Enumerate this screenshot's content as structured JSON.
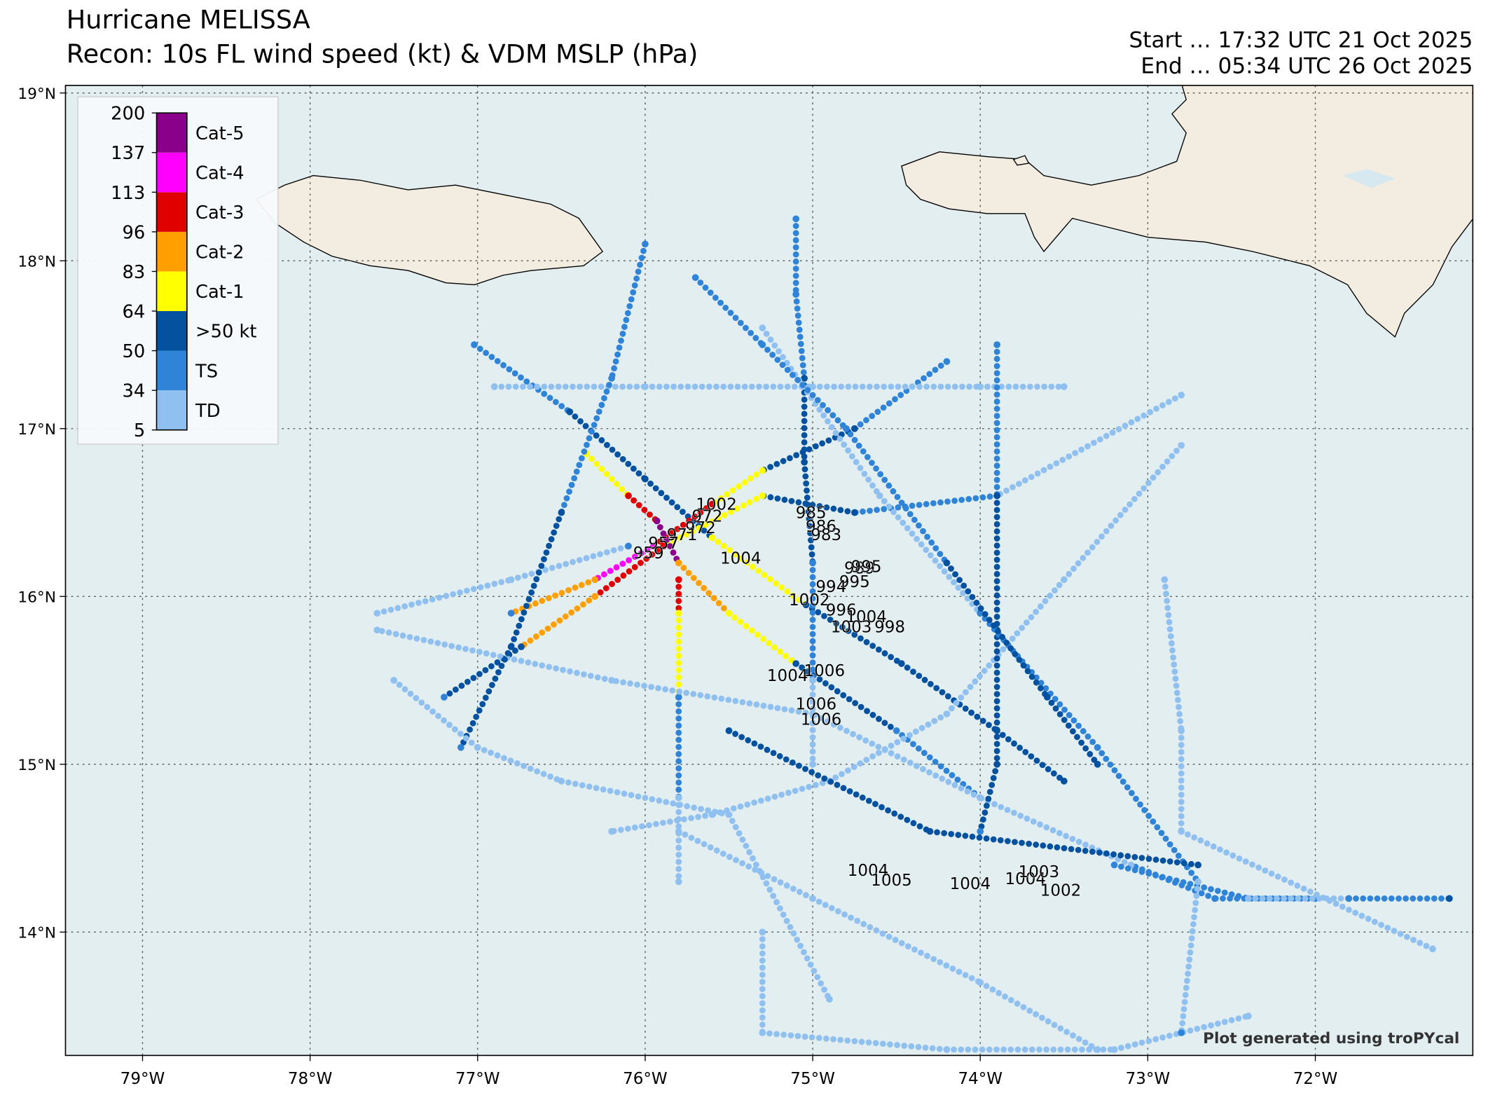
{
  "header": {
    "title": "Hurricane MELISSA",
    "subtitle": "Recon: 10s FL wind speed (kt) & VDM MSLP (hPa)",
    "start": "Start … 17:32 UTC 21 Oct 2025",
    "end": "End … 05:34 UTC 26 Oct 2025"
  },
  "credit": "Plot generated using troPYcal",
  "chart_data": {
    "type": "map",
    "xlim": [
      -79.46,
      -71.06
    ],
    "ylim": [
      13.265,
      19.045
    ],
    "grid": true,
    "xticks": [
      {
        "value": -79,
        "label": "79°W"
      },
      {
        "value": -78,
        "label": "78°W"
      },
      {
        "value": -77,
        "label": "77°W"
      },
      {
        "value": -76,
        "label": "76°W"
      },
      {
        "value": -75,
        "label": "75°W"
      },
      {
        "value": -74,
        "label": "74°W"
      },
      {
        "value": -73,
        "label": "73°W"
      },
      {
        "value": -72,
        "label": "72°W"
      }
    ],
    "yticks": [
      {
        "value": 14,
        "label": "14°N"
      },
      {
        "value": 15,
        "label": "15°N"
      },
      {
        "value": 16,
        "label": "16°N"
      },
      {
        "value": 17,
        "label": "17°N"
      },
      {
        "value": 18,
        "label": "18°N"
      },
      {
        "value": 19,
        "label": "19°N"
      }
    ],
    "legend": {
      "levels": [
        5,
        34,
        50,
        64,
        83,
        96,
        113,
        137,
        200
      ],
      "categories": [
        "TD",
        "TS",
        ">50 kt",
        "Cat-1",
        "Cat-2",
        "Cat-3",
        "Cat-4",
        "Cat-5"
      ],
      "colors": [
        "#8fc0f0",
        "#2f84d8",
        "#0451a0",
        "#ffff00",
        "#ff9f00",
        "#e00000",
        "#ff00ff",
        "#8b008b"
      ]
    },
    "tracks": [
      {
        "lon": [
          -77.02,
          -76.45,
          -76.0,
          -75.6,
          -75.04,
          -74.47,
          -73.9,
          -73.5
        ],
        "lat": [
          17.5,
          17.1,
          16.7,
          16.35,
          15.95,
          15.6,
          15.2,
          14.9
        ],
        "values": [
          45,
          58,
          62,
          75,
          60,
          58,
          55,
          52
        ]
      },
      {
        "lon": [
          -72.8,
          -73.9,
          -74.75,
          -75.3,
          -75.89,
          -76.3,
          -76.74,
          -77.2
        ],
        "lat": [
          17.2,
          16.6,
          16.5,
          16.6,
          16.3,
          16.0,
          15.7,
          15.4
        ],
        "values": [
          30,
          40,
          55,
          80,
          105,
          85,
          60,
          45
        ]
      },
      {
        "lon": [
          -74.2,
          -74.75,
          -75.3,
          -75.6,
          -75.95,
          -76.3,
          -76.8
        ],
        "lat": [
          17.4,
          17.0,
          16.75,
          16.55,
          16.3,
          16.1,
          15.9
        ],
        "values": [
          45,
          50,
          70,
          100,
          115,
          90,
          40
        ]
      },
      {
        "lon": [
          -76.35,
          -76.1,
          -75.93,
          -75.8,
          -75.5,
          -75.1,
          -74.5,
          -74.0
        ],
        "lat": [
          16.85,
          16.6,
          16.45,
          16.2,
          15.9,
          15.6,
          15.2,
          14.8
        ],
        "values": [
          75,
          100,
          140,
          85,
          75,
          55,
          40,
          30
        ]
      },
      {
        "lon": [
          -75.8,
          -75.8,
          -75.8,
          -75.8,
          -75.8
        ],
        "lat": [
          16.1,
          15.9,
          15.4,
          14.8,
          14.3
        ],
        "values": [
          110,
          75,
          40,
          25,
          20
        ]
      },
      {
        "lon": [
          -72.8,
          -73.5,
          -74.2,
          -74.9,
          -75.6,
          -76.2
        ],
        "lat": [
          16.9,
          16.1,
          15.3,
          14.9,
          14.7,
          14.6
        ],
        "values": [
          25,
          30,
          28,
          22,
          20,
          18
        ]
      },
      {
        "lon": [
          -72.0,
          -72.6,
          -73.1,
          -74.0,
          -75.0,
          -76.2,
          -77.6
        ],
        "lat": [
          14.2,
          14.2,
          14.4,
          14.8,
          15.3,
          15.5,
          15.8
        ],
        "values": [
          40,
          38,
          30,
          25,
          22,
          20,
          18
        ]
      },
      {
        "lon": [
          -75.1,
          -75.1,
          -75.05,
          -75.05,
          -75.0,
          -75.0,
          -75.0
        ],
        "lat": [
          18.25,
          17.8,
          17.3,
          16.8,
          16.2,
          15.5,
          15.0
        ],
        "values": [
          35,
          40,
          55,
          60,
          45,
          30,
          25
        ]
      },
      {
        "lon": [
          -76.9,
          -76.0,
          -75.0,
          -74.0,
          -73.5
        ],
        "lat": [
          17.25,
          17.25,
          17.25,
          17.25,
          17.25
        ],
        "values": [
          20,
          22,
          25,
          22,
          20
        ]
      },
      {
        "lon": [
          -75.3,
          -75.3,
          -74.2,
          -73.2,
          -72.4
        ],
        "lat": [
          14.0,
          13.4,
          13.3,
          13.3,
          13.5
        ],
        "values": [
          20,
          18,
          20,
          22,
          20
        ]
      },
      {
        "lon": [
          -73.2,
          -72.4,
          -71.8,
          -71.2
        ],
        "lat": [
          14.4,
          14.2,
          14.2,
          14.2
        ],
        "values": [
          35,
          30,
          45,
          50
        ]
      },
      {
        "lon": [
          -77.6,
          -76.8,
          -76.1
        ],
        "lat": [
          15.9,
          16.1,
          16.3
        ],
        "values": [
          18,
          25,
          40
        ]
      },
      {
        "lon": [
          -73.9,
          -73.9,
          -73.9,
          -73.9,
          -74.0
        ],
        "lat": [
          17.5,
          16.6,
          15.8,
          15.0,
          14.6
        ],
        "values": [
          45,
          55,
          60,
          50,
          40
        ]
      },
      {
        "lon": [
          -76.0,
          -76.2,
          -76.5,
          -76.8,
          -77.1
        ],
        "lat": [
          18.1,
          17.3,
          16.5,
          15.7,
          15.1
        ],
        "values": [
          35,
          40,
          55,
          60,
          45
        ]
      },
      {
        "lon": [
          -75.3,
          -74.6,
          -74.0,
          -73.3,
          -72.7,
          -72.8
        ],
        "lat": [
          17.6,
          16.6,
          15.9,
          15.1,
          14.3,
          13.4
        ],
        "values": [
          25,
          30,
          35,
          40,
          30,
          35
        ]
      },
      {
        "lon": [
          -72.9,
          -72.8,
          -72.8,
          -71.3
        ],
        "lat": [
          16.1,
          15.2,
          14.6,
          13.9
        ],
        "values": [
          20,
          22,
          25,
          22
        ]
      },
      {
        "lon": [
          -75.8,
          -75.0,
          -74.0,
          -73.3
        ],
        "lat": [
          14.6,
          14.2,
          13.7,
          13.3
        ],
        "values": [
          18,
          20,
          22,
          25
        ]
      },
      {
        "lon": [
          -75.5,
          -74.3,
          -72.7
        ],
        "lat": [
          15.2,
          14.6,
          14.4
        ],
        "values": [
          55,
          52,
          55
        ]
      },
      {
        "lon": [
          -77.5,
          -77.0,
          -76.5,
          -75.5,
          -74.9
        ],
        "lat": [
          15.5,
          15.1,
          14.9,
          14.7,
          13.6
        ],
        "values": [
          18,
          20,
          22,
          20,
          18
        ]
      },
      {
        "lon": [
          -75.7,
          -75.3,
          -74.8,
          -74.2,
          -73.6,
          -73.3
        ],
        "lat": [
          17.9,
          17.5,
          17.0,
          16.2,
          15.4,
          15.0
        ],
        "values": [
          35,
          38,
          45,
          50,
          55,
          60
        ]
      }
    ],
    "pressure": {
      "values": [
        1002,
        972,
        972,
        971,
        957,
        959,
        1004,
        985,
        986,
        983,
        989,
        995,
        995,
        994,
        1002,
        996,
        1004,
        1003,
        998,
        1004,
        1006,
        1006,
        1006,
        1004,
        1005,
        1004,
        1004,
        1003,
        1002
      ],
      "lon": [
        -75.575,
        -75.63,
        -75.67,
        -75.78,
        -75.89,
        -75.98,
        -75.43,
        -75.01,
        -74.95,
        -74.92,
        -74.72,
        -74.68,
        -74.75,
        -74.89,
        -75.02,
        -74.83,
        -74.68,
        -74.77,
        -74.54,
        -75.15,
        -74.93,
        -74.98,
        -74.95,
        -74.67,
        -74.53,
        -74.06,
        -73.73,
        -73.65,
        -73.52
      ],
      "lat": [
        16.55,
        16.48,
        16.41,
        16.37,
        16.32,
        16.26,
        16.23,
        16.5,
        16.42,
        16.37,
        16.17,
        16.18,
        16.09,
        16.06,
        15.98,
        15.92,
        15.88,
        15.82,
        15.82,
        15.53,
        15.56,
        15.36,
        15.27,
        14.37,
        14.31,
        14.29,
        14.32,
        14.36,
        14.25
      ]
    }
  }
}
